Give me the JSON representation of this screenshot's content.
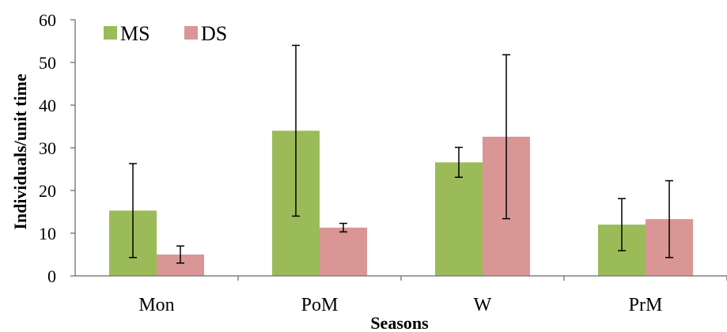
{
  "chart_data": {
    "type": "bar",
    "categories": [
      "Mon",
      "PoM",
      "W",
      "PrM"
    ],
    "series": [
      {
        "name": "MS",
        "color": "#9BBB59",
        "values": [
          15.3,
          34.0,
          26.6,
          12.0
        ],
        "error_low": [
          4.3,
          14.0,
          23.1,
          5.9
        ],
        "error_high": [
          26.3,
          54.0,
          30.1,
          18.1
        ]
      },
      {
        "name": "DS",
        "color": "#D99694",
        "values": [
          5.0,
          11.3,
          32.6,
          13.3
        ],
        "error_low": [
          3.0,
          10.3,
          13.4,
          4.3
        ],
        "error_high": [
          7.0,
          12.3,
          51.8,
          22.3
        ]
      }
    ],
    "xlabel": "Seasons",
    "ylabel": "Individuals/unit time",
    "ylim": [
      0,
      60
    ],
    "yticks": [
      "0",
      "10",
      "20",
      "30",
      "40",
      "50",
      "60"
    ],
    "legend_position": "top-left",
    "grid": false
  }
}
